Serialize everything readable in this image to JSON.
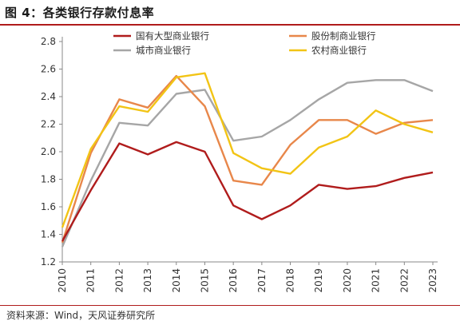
{
  "figure": {
    "title": "图 4：各类银行存款付息率",
    "source": "资料来源：Wind，天风证券研究所"
  },
  "chart_data": {
    "type": "line",
    "x": [
      "2010",
      "2011",
      "2012",
      "2013",
      "2014",
      "2015",
      "2016",
      "2017",
      "2018",
      "2019",
      "2020",
      "2021",
      "2022",
      "2023"
    ],
    "ylim": [
      1.2,
      2.8
    ],
    "yticks": [
      "1.2",
      "1.4",
      "1.6",
      "1.8",
      "2.0",
      "2.2",
      "2.4",
      "2.6",
      "2.8"
    ],
    "grid": false,
    "legend": "top",
    "series": [
      {
        "name": "国有大型商业银行",
        "color": "#b01c1c",
        "values": [
          1.35,
          1.72,
          2.06,
          1.98,
          2.07,
          2.0,
          1.61,
          1.51,
          1.61,
          1.76,
          1.73,
          1.75,
          1.81,
          1.85
        ]
      },
      {
        "name": "股份制商业银行",
        "color": "#e8874a",
        "values": [
          1.34,
          1.99,
          2.38,
          2.32,
          2.55,
          2.33,
          1.79,
          1.76,
          2.05,
          2.23,
          2.23,
          2.13,
          2.21,
          2.23
        ]
      },
      {
        "name": "城市商业银行",
        "color": "#a6a6a6",
        "values": [
          1.31,
          1.79,
          2.21,
          2.19,
          2.42,
          2.45,
          2.08,
          2.11,
          2.23,
          2.38,
          2.5,
          2.52,
          2.52,
          2.44
        ]
      },
      {
        "name": "农村商业银行",
        "color": "#f2c415",
        "values": [
          1.45,
          2.02,
          2.33,
          2.29,
          2.54,
          2.57,
          1.99,
          1.88,
          1.84,
          2.03,
          2.11,
          2.3,
          2.2,
          2.14
        ]
      }
    ]
  }
}
